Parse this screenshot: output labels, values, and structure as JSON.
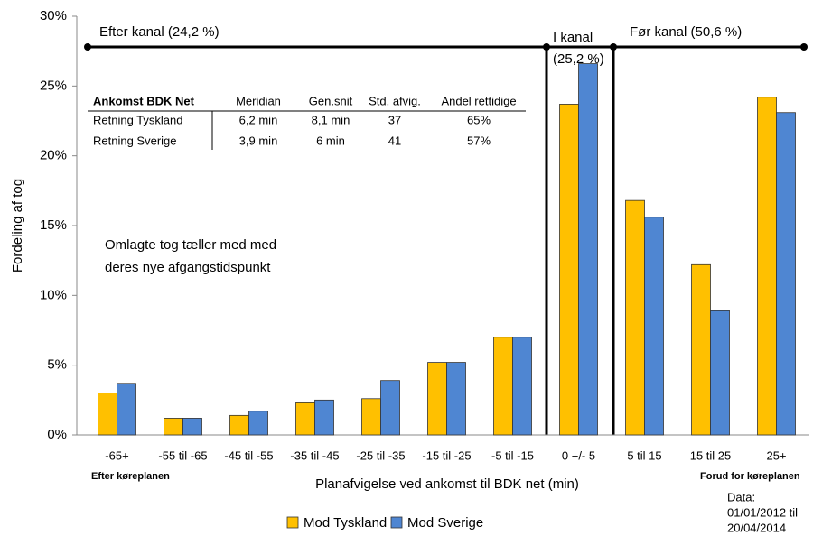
{
  "chart_data": {
    "type": "bar",
    "x_label": "Planafvigelse ved ankomst til BDK net (min)",
    "y_label": "Fordeling af tog",
    "categories": [
      "-65+",
      "-55 til -65",
      "-45 til -55",
      "-35 til -45",
      "-25 til -35",
      "-15 til -25",
      "-5 til -15",
      "0 +/- 5",
      "5 til 15",
      "15 til 25",
      "25+"
    ],
    "series": [
      {
        "name": "Mod Tyskland",
        "color": "#FFC000",
        "values": [
          3.0,
          1.2,
          1.4,
          2.3,
          2.6,
          5.2,
          7.0,
          23.7,
          16.8,
          12.2,
          24.2
        ]
      },
      {
        "name": "Mod Sverige",
        "color": "#4F86D2",
        "values": [
          3.7,
          1.2,
          1.7,
          2.5,
          3.9,
          5.2,
          7.0,
          26.6,
          15.6,
          8.9,
          23.1
        ]
      }
    ],
    "ylim": [
      0,
      30
    ],
    "yticks": [
      {
        "value": 0,
        "label": "0%"
      },
      {
        "value": 5,
        "label": "5%"
      },
      {
        "value": 10,
        "label": "10%"
      },
      {
        "value": 15,
        "label": "15%"
      },
      {
        "value": 20,
        "label": "20%"
      },
      {
        "value": 25,
        "label": "25%"
      },
      {
        "value": 30,
        "label": "30%"
      }
    ],
    "grid": false,
    "legend": "bottom",
    "region_labels": [
      "Efter kanal (24,2 %)",
      "I kanal",
      "(25,2 %)",
      "Før kanal (50,6 %)"
    ],
    "note": [
      "Omlagte tog tæller med med",
      "deres nye afgangstidspunkt"
    ],
    "x_left_label": "Efter køreplanen",
    "x_right_label": "Forud for køreplanen",
    "data_note": [
      "Data:",
      "01/01/2012  til",
      "20/04/2014"
    ],
    "table": {
      "header": [
        "Ankomst BDK Net",
        "Meridian",
        "Gen.snit",
        "Std. afvig.",
        "Andel rettidige"
      ],
      "rows": [
        [
          "Retning Tyskland",
          "6,2 min",
          "8,1 min",
          "37",
          "65%"
        ],
        [
          "Retning Sverige",
          "3,9 min",
          "6 min",
          "41",
          "57%"
        ]
      ]
    }
  }
}
